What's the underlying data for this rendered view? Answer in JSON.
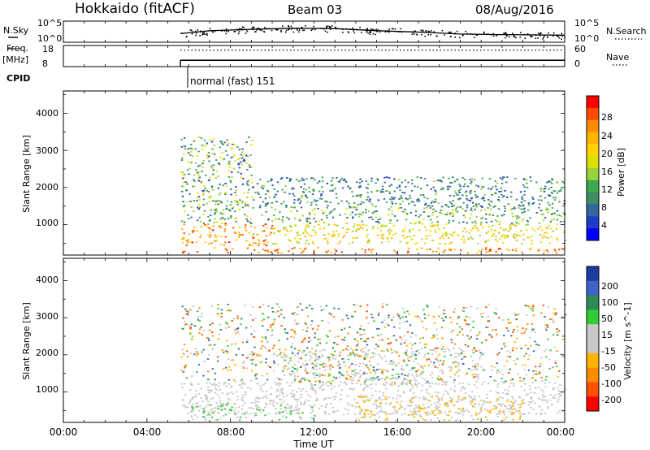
{
  "header": {
    "station": "Hokkaido (fitACF)",
    "beam": "Beam 03",
    "date": "08/Aug/2016"
  },
  "noise_panel": {
    "left_label": "N.Sky",
    "left_ticks": [
      "10^5",
      "10^0"
    ],
    "right_label": "N.Search",
    "right_ticks": [
      "10^5",
      "10^0"
    ]
  },
  "freq_panel": {
    "left_label_1": "Freq.",
    "left_label_2": "[MHz]",
    "left_ticks": [
      "18",
      "8"
    ],
    "right_label": "Nave",
    "right_ticks": [
      "60",
      "0"
    ]
  },
  "cpid": {
    "label": "CPID",
    "program": "normal (fast) 151"
  },
  "range_axis": {
    "label": "Slant Range [km]",
    "ticks": [
      "4000",
      "3000",
      "2000",
      "1000"
    ]
  },
  "time_axis": {
    "label": "Time UT",
    "ticks": [
      "00:00",
      "04:00",
      "08:00",
      "12:00",
      "16:00",
      "20:00",
      "00:00"
    ]
  },
  "power_colorbar": {
    "label": "Power [dB]",
    "ticks": [
      "28",
      "24",
      "20",
      "16",
      "12",
      "8",
      "4"
    ],
    "colors": [
      "#ff0000",
      "#ff4b00",
      "#ff8c00",
      "#ffb400",
      "#ffd200",
      "#dce000",
      "#9bd23c",
      "#3caa50",
      "#3c8c64",
      "#3264a0",
      "#1e3cc8",
      "#0000ff"
    ]
  },
  "velocity_colorbar": {
    "label": "Velocity [m s^-1]",
    "ticks": [
      "200",
      "100",
      "50",
      "15",
      "-15",
      "-50",
      "-100",
      "-200"
    ],
    "colors": [
      "#1e3ca0",
      "#3c64c8",
      "#2e8b57",
      "#32cd32",
      "#c8c8c8",
      "#c8c8c8",
      "#ffb400",
      "#ff8c00",
      "#ff5000",
      "#ff0000"
    ]
  },
  "chart_data": {
    "type": "heatmap",
    "x_axis": {
      "label": "Time UT",
      "range_hours": [
        0,
        24
      ]
    },
    "y_axis": {
      "label": "Slant Range [km]",
      "range_km": [
        180,
        4600
      ]
    },
    "panels": [
      {
        "name": "Power [dB]",
        "scale": [
          0,
          32
        ],
        "scatter_regions": [
          {
            "t0": 5.6,
            "t1": 24,
            "r0": 250,
            "r1": 400,
            "v0": 20,
            "v1": 30
          },
          {
            "t0": 5.6,
            "t1": 10,
            "r0": 450,
            "r1": 1050,
            "v0": 18,
            "v1": 30
          },
          {
            "t0": 10,
            "t1": 24,
            "r0": 500,
            "r1": 1050,
            "v0": 14,
            "v1": 24
          },
          {
            "t0": 5.6,
            "t1": 24,
            "r0": 1050,
            "r1": 1500,
            "v0": 6,
            "v1": 18
          },
          {
            "t0": 9,
            "t1": 24,
            "r0": 1500,
            "r1": 2300,
            "v0": 4,
            "v1": 14
          },
          {
            "t0": 5.6,
            "t1": 9,
            "r0": 1500,
            "r1": 3400,
            "v0": 4,
            "v1": 20
          }
        ]
      },
      {
        "name": "Velocity [m s^-1]",
        "scale": [
          -250,
          250
        ],
        "scatter_regions": [
          {
            "t0": 5.6,
            "t1": 24,
            "r0": 400,
            "r1": 1300,
            "v0": -15,
            "v1": 15
          },
          {
            "t0": 10,
            "t1": 20,
            "r0": 1200,
            "r1": 2200,
            "v0": -60,
            "v1": 60
          },
          {
            "t0": 14,
            "t1": 22,
            "r0": 250,
            "r1": 900,
            "v0": -90,
            "v1": -20
          },
          {
            "t0": 6,
            "t1": 12,
            "r0": 250,
            "r1": 700,
            "v0": 20,
            "v1": 70
          },
          {
            "t0": 5.6,
            "t1": 24,
            "r0": 1300,
            "r1": 3400,
            "v0": -200,
            "v1": 200
          }
        ]
      }
    ],
    "noise_search_series": {
      "t": [
        5.6,
        7,
        9,
        11,
        13,
        15,
        17,
        19,
        21,
        24
      ],
      "level": [
        0.4,
        0.55,
        0.62,
        0.68,
        0.66,
        0.55,
        0.48,
        0.38,
        0.35,
        0.32
      ]
    },
    "frequency_MHz": {
      "t": [
        5.6,
        24
      ],
      "value": [
        11,
        11
      ]
    },
    "nave": {
      "t": [
        5.6,
        24
      ],
      "value": [
        26,
        26
      ]
    }
  }
}
